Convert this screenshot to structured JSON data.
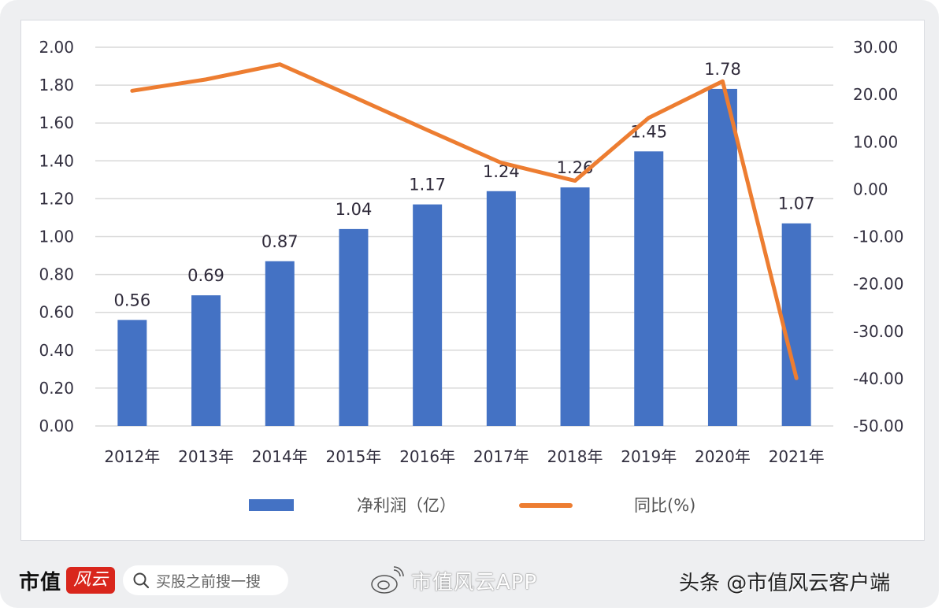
{
  "chart_data": {
    "type": "bar+line",
    "title": "",
    "categories": [
      "2012年",
      "2013年",
      "2014年",
      "2015年",
      "2016年",
      "2017年",
      "2018年",
      "2019年",
      "2020年",
      "2021年"
    ],
    "series": [
      {
        "name": "净利润（亿）",
        "type": "bar",
        "axis": "left",
        "color": "#4472C4",
        "values": [
          0.56,
          0.69,
          0.87,
          1.04,
          1.17,
          1.24,
          1.26,
          1.45,
          1.78,
          1.07
        ],
        "data_labels": [
          "0.56",
          "0.69",
          "0.87",
          "1.04",
          "1.17",
          "1.24",
          "1.26",
          "1.45",
          "1.78",
          "1.07"
        ]
      },
      {
        "name": "同比(%)",
        "type": "line",
        "axis": "right",
        "color": "#ED7D31",
        "values": [
          20.8,
          23.2,
          26.4,
          19.5,
          12.5,
          5.6,
          1.8,
          15.1,
          22.8,
          -39.9
        ]
      }
    ],
    "left_axis": {
      "ylim": [
        0,
        2.0
      ],
      "ticks": [
        "0.00",
        "0.20",
        "0.40",
        "0.60",
        "0.80",
        "1.00",
        "1.20",
        "1.40",
        "1.60",
        "1.80",
        "2.00"
      ]
    },
    "right_axis": {
      "ylim": [
        -50,
        30
      ],
      "ticks": [
        "-50.00",
        "-40.00",
        "-30.00",
        "-20.00",
        "-10.00",
        "0.00",
        "10.00",
        "20.00",
        "30.00"
      ]
    },
    "xlabel": "",
    "ylabel": "",
    "grid": true,
    "legend_position": "bottom"
  },
  "legend": {
    "bar_label": "净利润（亿）",
    "line_label": "同比(%)"
  },
  "footer": {
    "brand_text": "市值",
    "brand_badge": "风云",
    "search_placeholder": "买股之前搜一搜",
    "weibo_text": "市值风云APP",
    "toutiao_text": "头条 @市值风云客户端"
  }
}
